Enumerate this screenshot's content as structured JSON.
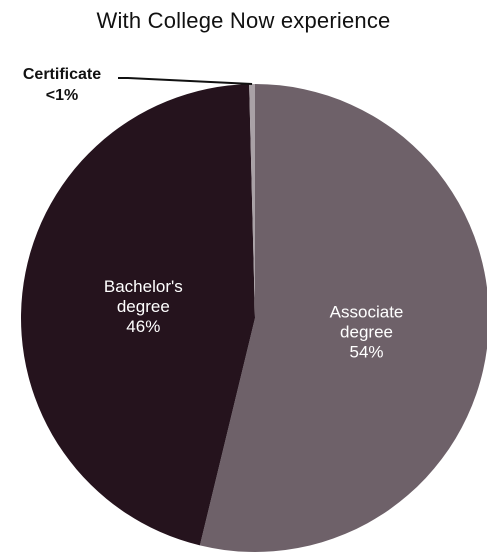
{
  "chart_data": {
    "type": "pie",
    "title": "With College Now experience",
    "slices": [
      {
        "name": "Associate degree",
        "lines": [
          "Associate",
          "degree"
        ],
        "value": 54,
        "value_label": "54%",
        "color": "#6e6169",
        "text_color": "#ffffff"
      },
      {
        "name": "Bachelor's degree",
        "lines": [
          "Bachelor's",
          "degree"
        ],
        "value": 46,
        "value_label": "46%",
        "color": "#25131d",
        "text_color": "#ffffff"
      },
      {
        "name": "Certificate",
        "lines": [
          "Certificate"
        ],
        "value": 0.4,
        "value_label": "<1%",
        "color": "#a9a1a6",
        "text_color": "#111111"
      }
    ],
    "start": "12 o'clock",
    "direction": "clockwise",
    "legend": "none"
  }
}
